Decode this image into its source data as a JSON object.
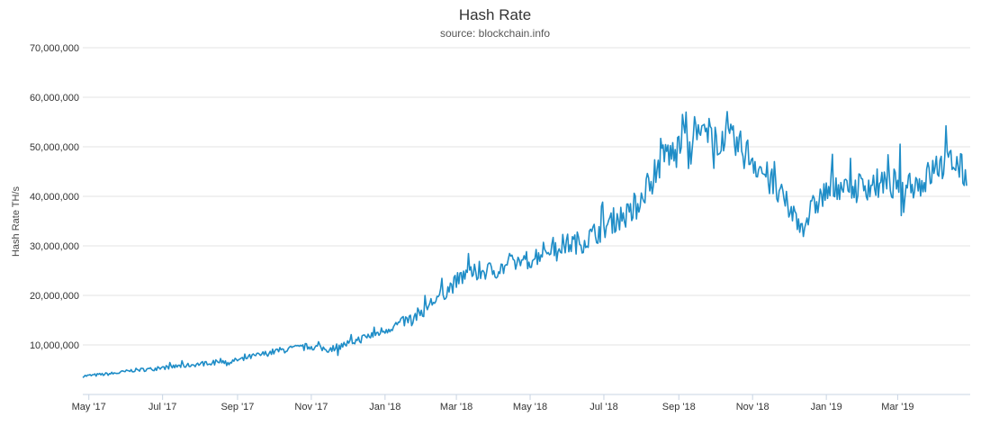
{
  "chart_data": {
    "type": "line",
    "title": "Hash Rate",
    "subtitle": "source: blockchain.info",
    "ylabel": "Hash Rate TH/s",
    "xlabel": "",
    "xlim": [
      "2017-04-26",
      "2019-04-30"
    ],
    "ylim": [
      0,
      70000000
    ],
    "grid": true,
    "legend": "none",
    "line_color": "#1f8dc7",
    "y_ticks": [
      10000000,
      20000000,
      30000000,
      40000000,
      50000000,
      60000000,
      70000000
    ],
    "y_tick_labels": [
      "10,000,000",
      "20,000,000",
      "30,000,000",
      "40,000,000",
      "50,000,000",
      "60,000,000",
      "70,000,000"
    ],
    "x_ticks": [
      "2017-05-01",
      "2017-07-01",
      "2017-09-01",
      "2017-11-01",
      "2018-01-01",
      "2018-03-01",
      "2018-05-01",
      "2018-07-01",
      "2018-09-01",
      "2018-11-01",
      "2019-01-01",
      "2019-03-01"
    ],
    "x_tick_labels": [
      "May '17",
      "Jul '17",
      "Sep '17",
      "Nov '17",
      "Jan '18",
      "Mar '18",
      "May '18",
      "Jul '18",
      "Sep '18",
      "Nov '18",
      "Jan '19",
      "Mar '19"
    ],
    "series": [
      {
        "x": [
          "2017-04-26",
          "2017-05-10",
          "2017-05-24",
          "2017-06-07",
          "2017-06-21",
          "2017-07-05",
          "2017-07-19",
          "2017-08-02",
          "2017-08-16",
          "2017-08-25",
          "2017-09-06",
          "2017-09-20",
          "2017-10-04",
          "2017-10-18",
          "2017-11-01",
          "2017-11-15",
          "2017-11-29",
          "2017-12-13",
          "2017-12-27",
          "2018-01-10",
          "2018-01-24",
          "2018-02-07",
          "2018-02-21",
          "2018-03-07",
          "2018-03-21",
          "2018-04-04",
          "2018-04-18",
          "2018-05-02",
          "2018-05-16",
          "2018-05-30",
          "2018-06-13",
          "2018-06-27",
          "2018-07-11",
          "2018-07-25",
          "2018-08-08",
          "2018-08-22",
          "2018-08-29",
          "2018-09-05",
          "2018-09-19",
          "2018-10-03",
          "2018-10-17",
          "2018-10-31",
          "2018-11-14",
          "2018-11-28",
          "2018-12-12",
          "2018-12-26",
          "2019-01-09",
          "2019-01-23",
          "2019-02-06",
          "2019-02-20",
          "2019-03-06",
          "2019-03-20",
          "2019-04-03",
          "2019-04-17",
          "2019-04-27"
        ],
        "values": [
          3700000,
          4000000,
          4300000,
          4900000,
          5100000,
          5500000,
          5800000,
          6200000,
          6900000,
          6500000,
          7300000,
          8000000,
          8800000,
          9300000,
          9700000,
          9100000,
          10100000,
          11300000,
          12500000,
          14000000,
          15500000,
          18200000,
          21000000,
          24000000,
          24800000,
          25200000,
          26500000,
          27400000,
          29500000,
          30300000,
          30800000,
          33000000,
          35500000,
          36500000,
          43500000,
          49000000,
          48000000,
          53500000,
          52500000,
          52000000,
          50500000,
          48000000,
          43500000,
          38500000,
          34000000,
          39500000,
          42500000,
          41500000,
          42500000,
          42000000,
          43000000,
          42500000,
          46000000,
          47000000,
          44000000
        ]
      }
    ]
  }
}
